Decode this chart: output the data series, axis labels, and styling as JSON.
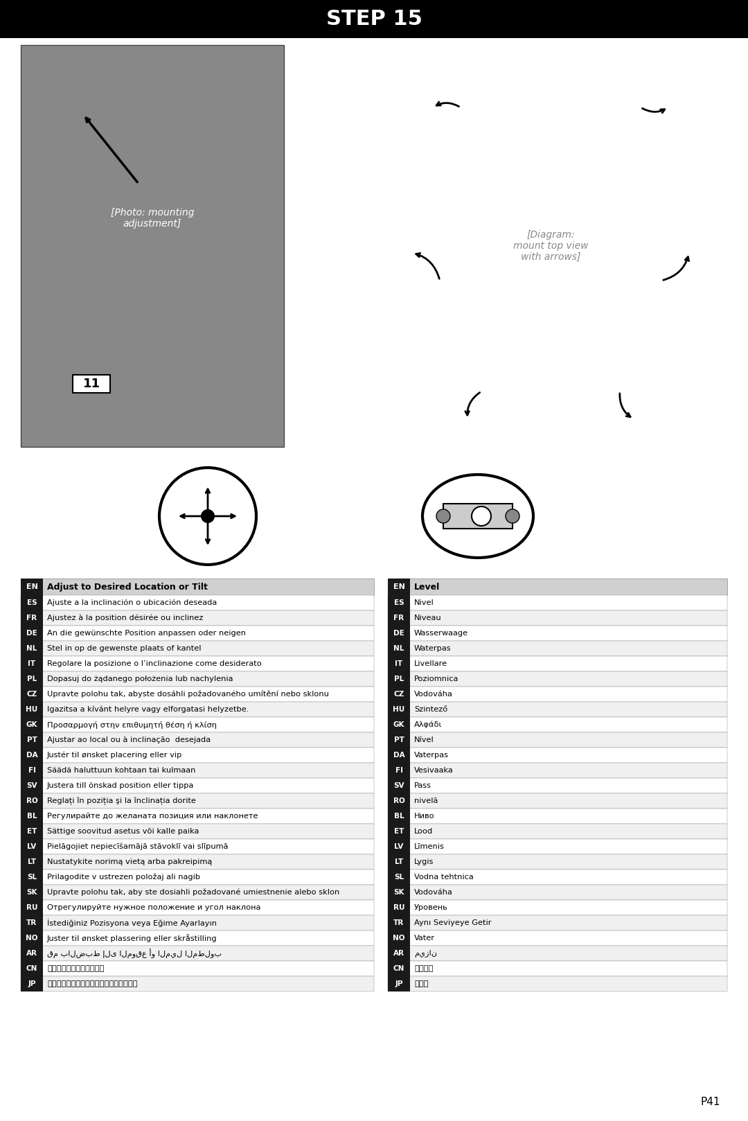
{
  "title": "STEP 15",
  "title_bg": "#000000",
  "title_color": "#ffffff",
  "page_num": "P41",
  "bg_color": "#ffffff",
  "left_table_header": [
    "EN",
    "Adjust to Desired Location or Tilt"
  ],
  "right_table_header": [
    "EN",
    "Level"
  ],
  "left_rows": [
    [
      "ES",
      "Ajuste a la inclinación o ubicación deseada"
    ],
    [
      "FR",
      "Ajustez à la position désirée ou inclinez"
    ],
    [
      "DE",
      "An die gewünschte Position anpassen oder neigen"
    ],
    [
      "NL",
      "Stel in op de gewenste plaats of kantel"
    ],
    [
      "IT",
      "Regolare la posizione o l’inclinazione come desiderato"
    ],
    [
      "PL",
      "Dopasuj do żądanego położenia lub nachylenia"
    ],
    [
      "CZ",
      "Upravte polohu tak, abyste dosáhli požadovaného umítění nebo sklonu"
    ],
    [
      "HU",
      "Igazitsa a kívánt helyre vagy elforgatasi helyzetbe."
    ],
    [
      "GK",
      "Προσαρμογή στην επιθυμητή θέση ή κλίση"
    ],
    [
      "PT",
      "Ajustar ao local ou à inclinação  desejada"
    ],
    [
      "DA",
      "Justér til ønsket placering eller vip"
    ],
    [
      "FI",
      "Säädä haluttuun kohtaan tai kulmaan"
    ],
    [
      "SV",
      "Justera till önskad position eller tippa"
    ],
    [
      "RO",
      "Reglați în poziția şi la înclinația dorite"
    ],
    [
      "BL",
      "Регулирайте до желаната позиция или наклонете"
    ],
    [
      "ET",
      "Sättige soovitud asetus või kalle paika"
    ],
    [
      "LV",
      "Pielāgojiet nepiecīšamājā stāvoklī vai slīpumā"
    ],
    [
      "LT",
      "Nustatykite norimą vietą arba pakreipimą"
    ],
    [
      "SL",
      "Prilagodite v ustrezen položaj ali nagib"
    ],
    [
      "SK",
      "Upravte polohu tak, aby ste dosiahli požadované umiestnenie alebo sklon"
    ],
    [
      "RU",
      "Отрегулируйте нужное положение и угол наклона"
    ],
    [
      "TR",
      "İstediğiniz Pozisyona veya Eğime Ayarlayın"
    ],
    [
      "NO",
      "Juster til ønsket plassering eller skråstilling"
    ],
    [
      "AR",
      "قم بالضبط إلى الموقع أو الميل المطلوب"
    ],
    [
      "CN",
      "调整到合适的位置或倾斜度"
    ],
    [
      "JP",
      "好みの位置または傾斜角度に調整します。"
    ]
  ],
  "right_rows": [
    [
      "ES",
      "Nivel"
    ],
    [
      "FR",
      "Niveau"
    ],
    [
      "DE",
      "Wasserwaage"
    ],
    [
      "NL",
      "Waterpas"
    ],
    [
      "IT",
      "Livellare"
    ],
    [
      "PL",
      "Poziomnica"
    ],
    [
      "CZ",
      "Vodováha"
    ],
    [
      "HU",
      "Szintező"
    ],
    [
      "GK",
      "Αλφάδι"
    ],
    [
      "PT",
      "Nível"
    ],
    [
      "DA",
      "Vaterpas"
    ],
    [
      "FI",
      "Vesivaaka"
    ],
    [
      "SV",
      "Pass"
    ],
    [
      "RO",
      "nivelă"
    ],
    [
      "BL",
      "Ниво"
    ],
    [
      "ET",
      "Lood"
    ],
    [
      "LV",
      "Līmenis"
    ],
    [
      "LT",
      "Lygis"
    ],
    [
      "SL",
      "Vodna tehtnica"
    ],
    [
      "SK",
      "Vodováha"
    ],
    [
      "RU",
      "Уровень"
    ],
    [
      "TR",
      "Aynı Seviyeye Getir"
    ],
    [
      "NO",
      "Vater"
    ],
    [
      "AR",
      "ميزان"
    ],
    [
      "CN",
      "水平调整"
    ],
    [
      "JP",
      "水平器"
    ]
  ],
  "label_bg": "#1a1a1a",
  "label_color": "#ffffff",
  "row_alt_color": "#f0f0f0",
  "row_color": "#ffffff",
  "header_bg": "#d0d0d0",
  "divider_color": "#888888",
  "table_border": "#888888"
}
